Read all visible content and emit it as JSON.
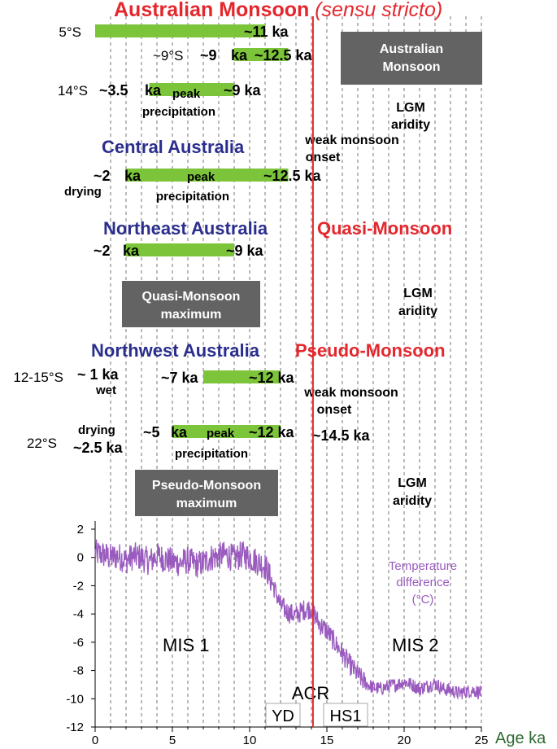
{
  "title": {
    "main": "Australian Monsoon ",
    "main_italic": "(sensu stricto)"
  },
  "regions": {
    "central": "Central Australia",
    "northeast": "Northeast Australia",
    "northwest": "Northwest Australia",
    "quasi": "Quasi-Monsoon",
    "pseudo": "Pseudo-Monsoon"
  },
  "latitudes": {
    "r1": "5°S",
    "r2": "~9°S",
    "r3": "14°S",
    "r4": "12-15°S",
    "r5": "22°S"
  },
  "bar_labels": {
    "r1_end": "~11 ka",
    "r2_start": "~9",
    "r2_ka": "ka",
    "r2_end": "~12.5 ka",
    "r3_start": "~3.5",
    "r3_ka": "ka",
    "r3_peak": "peak",
    "r3_end": "~9 ka",
    "r3_precip": "precipitation",
    "c_start": "~2",
    "c_ka": "ka",
    "c_peak": "peak",
    "c_end": "~12.5 ka",
    "c_drying": "drying",
    "c_precip": "precipitation",
    "ne_start": "~2",
    "ne_ka": "ka",
    "ne_end": "~9 ka",
    "nw1_wet_age": "~ 1 ka",
    "nw1_wet": "wet",
    "nw1_start": "~7 ka",
    "nw1_end": "~12 ka",
    "nw2_drying": "drying",
    "nw2_drying_age": "~2.5 ka",
    "nw2_start": "~5",
    "nw2_ka": "ka",
    "nw2_peak": "peak",
    "nw2_end": "~12 ka",
    "nw2_onset_age": "~14.5 ka",
    "nw2_precip": "precipitation"
  },
  "boxes": {
    "aus_l1": "Australian",
    "aus_l2": "Monsoon",
    "quasi_l1": "Quasi-Monsoon",
    "quasi_l2": "maximum",
    "pseudo_l1": "Pseudo-Monsoon",
    "pseudo_l2": "maximum"
  },
  "notes": {
    "lgm_l1": "LGM",
    "lgm_l2": "aridity",
    "onset_l1": "weak monsoon",
    "onset_l2": "onset",
    "temp_l1": "Temperature",
    "temp_l2": "difference",
    "temp_l3": "(°C)",
    "mis1": "MIS 1",
    "mis2": "MIS 2",
    "acr": "ACR",
    "yd": "YD",
    "hs1": "HS1"
  },
  "colors": {
    "bar_green": "#7cc43a",
    "title_red": "#e4272d",
    "region_blue": "#2b2e8e",
    "box_gray": "#636363",
    "series_purple": "#9a5bbf",
    "vline_red": "#e4272d",
    "axis_label_green": "#2e6b33"
  },
  "timeline_bars": [
    {
      "row": "r1",
      "from": 0,
      "to": 11
    },
    {
      "row": "r2",
      "from": 9,
      "to": 12.5
    },
    {
      "row": "r3",
      "from": 3.5,
      "to": 9
    },
    {
      "row": "central",
      "from": 2,
      "to": 12.5
    },
    {
      "row": "northeast",
      "from": 2,
      "to": 9
    },
    {
      "row": "nw1",
      "from": 7,
      "to": 12
    },
    {
      "row": "nw2",
      "from": 5,
      "to": 12
    }
  ],
  "chart_data": {
    "type": "line",
    "xlabel": "Age ka",
    "ylabel": "",
    "xlim": [
      0,
      25
    ],
    "ylim": [
      -12,
      3
    ],
    "xticks": [
      0,
      5,
      10,
      15,
      20,
      25
    ],
    "yticks": [
      2,
      0,
      -2,
      -4,
      -6,
      -8,
      -10,
      -12
    ],
    "vline_acr_x": 14.1,
    "grid_dashed_every": 1,
    "series": [
      {
        "name": "Temperature difference (°C)",
        "x": [
          0,
          0.5,
          1,
          1.5,
          2,
          2.5,
          3,
          3.5,
          4,
          4.5,
          5,
          5.5,
          6,
          6.5,
          7,
          7.5,
          8,
          8.5,
          9,
          9.5,
          10,
          10.5,
          11,
          11.5,
          12,
          12.5,
          13,
          13.5,
          14,
          14.5,
          15,
          15.5,
          16,
          16.5,
          17,
          17.5,
          18,
          18.5,
          19,
          19.5,
          20,
          20.5,
          21,
          21.5,
          22,
          22.5,
          23,
          23.5,
          24,
          24.5,
          25
        ],
        "values": [
          0.3,
          0.2,
          0.0,
          0.1,
          -0.2,
          0.1,
          0.0,
          -0.3,
          0.1,
          -0.1,
          -0.3,
          -0.4,
          -0.2,
          -0.5,
          -0.4,
          0.0,
          0.1,
          0.2,
          -0.1,
          0.2,
          0.0,
          -0.3,
          -0.6,
          -1.9,
          -3.4,
          -3.9,
          -4.1,
          -3.7,
          -3.6,
          -4.7,
          -5.2,
          -6.0,
          -6.8,
          -7.6,
          -8.3,
          -8.9,
          -9.2,
          -9.3,
          -9.1,
          -9.0,
          -8.8,
          -9.0,
          -9.3,
          -9.1,
          -8.9,
          -9.3,
          -9.4,
          -9.6,
          -9.5,
          -9.4,
          -9.6
        ]
      }
    ]
  }
}
